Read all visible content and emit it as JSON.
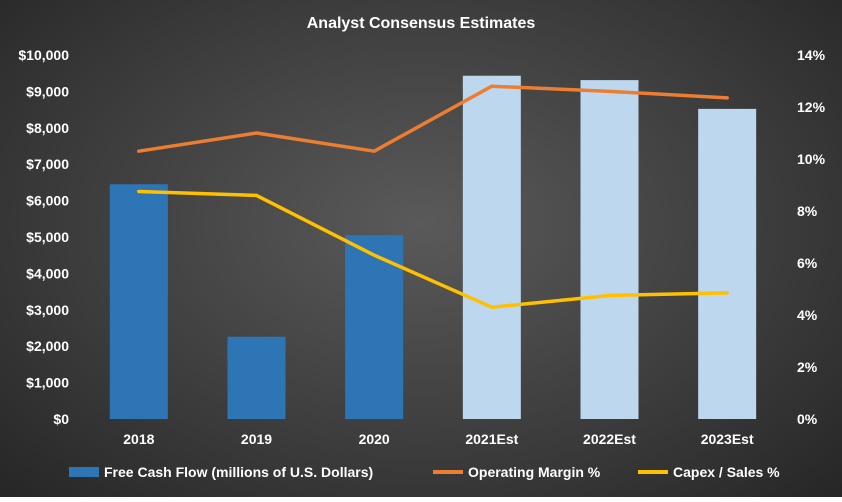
{
  "chart_data": {
    "type": "bar",
    "title": "Analyst  Consensus  Estimates",
    "categories": [
      "2018",
      "2019",
      "2020",
      "2021Est",
      "2022Est",
      "2023Est"
    ],
    "y_left": {
      "ylim": [
        0,
        10000
      ],
      "ticks": [
        0,
        1000,
        2000,
        3000,
        4000,
        5000,
        6000,
        7000,
        8000,
        9000,
        10000
      ],
      "tick_labels": [
        "$0",
        "$1,000",
        "$2,000",
        "$3,000",
        "$4,000",
        "$5,000",
        "$6,000",
        "$7,000",
        "$8,000",
        "$9,000",
        "$10,000"
      ]
    },
    "y_right": {
      "ylim": [
        0,
        14
      ],
      "ticks": [
        0,
        2,
        4,
        6,
        8,
        10,
        12,
        14
      ],
      "tick_labels": [
        "0%",
        "2%",
        "4%",
        "6%",
        "8%",
        "10%",
        "12%",
        "14%"
      ]
    },
    "grid": false,
    "legend_position": "bottom",
    "series": [
      {
        "name": "Free Cash Flow (millions of U.S. Dollars)",
        "type": "bar",
        "axis": "left",
        "values": [
          6450,
          2260,
          5050,
          9430,
          9310,
          8520
        ],
        "colors": [
          "#2e75b6",
          "#2e75b6",
          "#2e75b6",
          "#bdd7ee",
          "#bdd7ee",
          "#bdd7ee"
        ],
        "legend_color": "#2e75b6"
      },
      {
        "name": "Operating Margin %",
        "type": "line",
        "axis": "right",
        "values": [
          10.3,
          11.0,
          10.3,
          12.8,
          12.6,
          12.35
        ],
        "color": "#ed7d31"
      },
      {
        "name": "Capex / Sales %",
        "type": "line",
        "axis": "right",
        "values": [
          8.75,
          8.6,
          6.3,
          4.3,
          4.75,
          4.85
        ],
        "color": "#ffc000"
      }
    ]
  }
}
